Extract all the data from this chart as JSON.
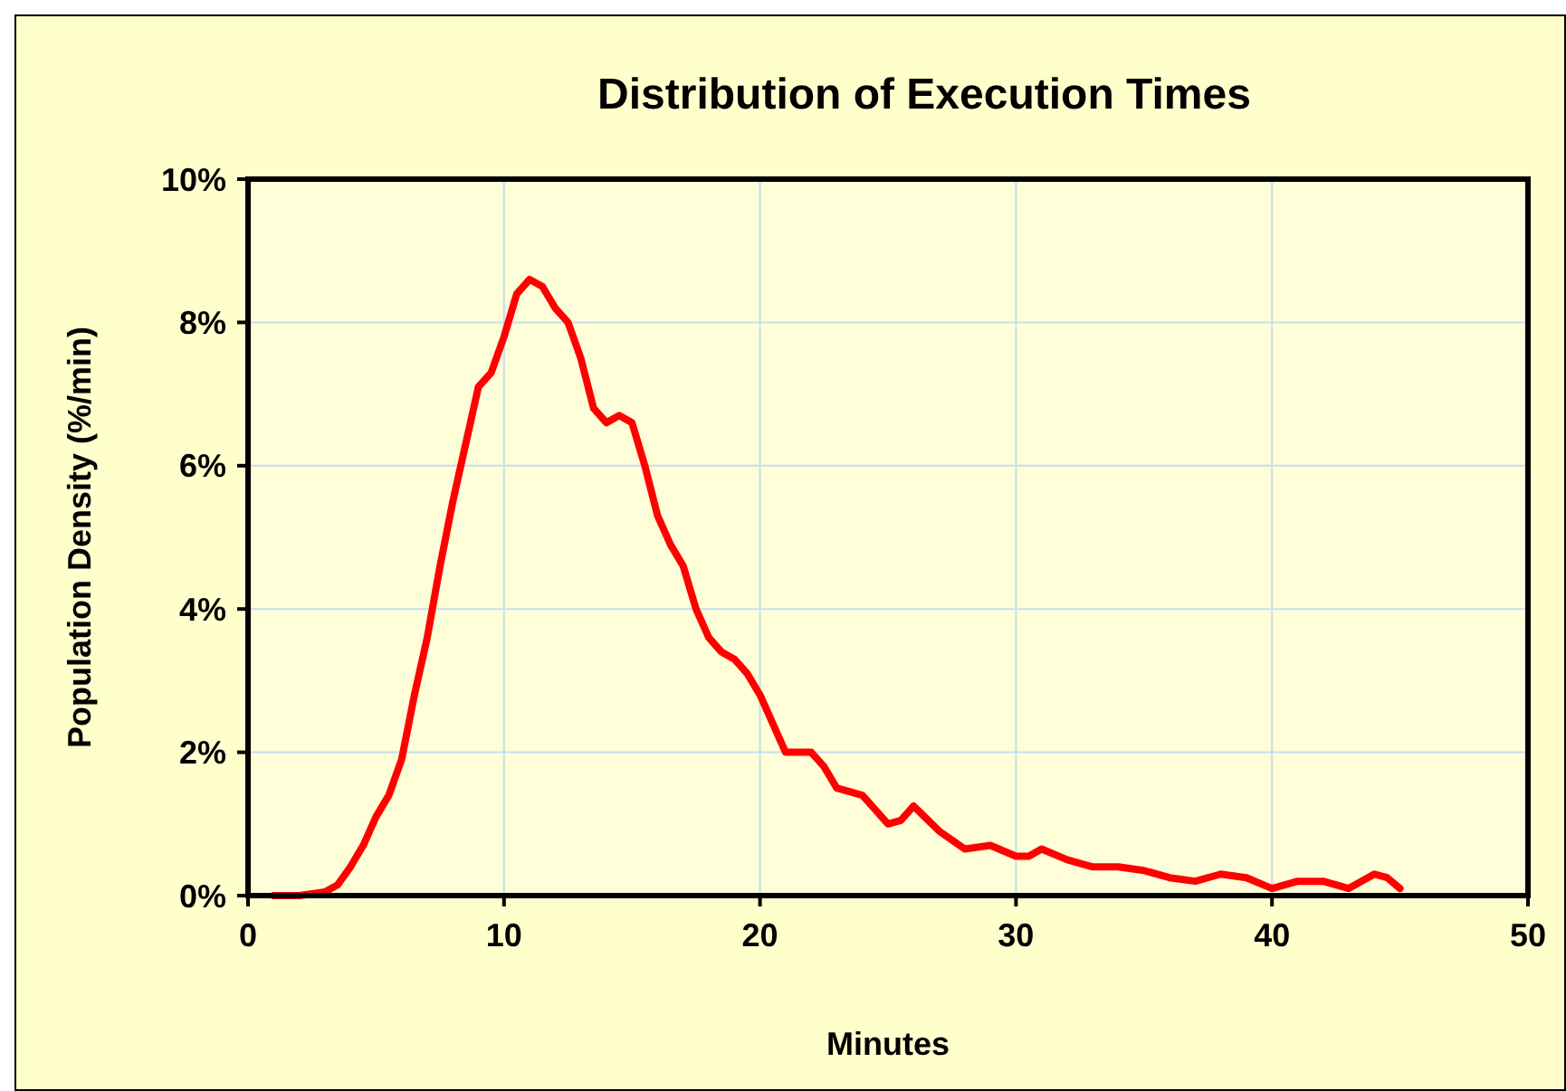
{
  "chart_data": {
    "type": "line",
    "title": "Distribution of Execution Times",
    "xlabel": "Minutes",
    "ylabel": "Population Density (%/min)",
    "x": [
      1,
      2,
      3,
      3.5,
      4,
      4.5,
      5,
      5.5,
      6,
      6.5,
      7,
      7.5,
      8,
      8.5,
      9,
      9.5,
      10,
      10.5,
      11,
      11.5,
      12,
      12.5,
      13,
      13.5,
      14,
      14.5,
      15,
      15.5,
      16,
      16.5,
      17,
      17.5,
      18,
      18.5,
      19,
      19.5,
      20,
      20.5,
      21,
      22,
      22.5,
      23,
      24,
      25,
      25.5,
      26,
      27,
      28,
      29,
      30,
      30.5,
      31,
      32,
      33,
      34,
      35,
      36,
      37,
      38,
      39,
      40,
      41,
      42,
      43,
      44,
      44.5,
      45
    ],
    "series": [
      {
        "color": "#ff0000",
        "values": [
          0,
          0,
          0.05,
          0.15,
          0.4,
          0.7,
          1.1,
          1.4,
          1.9,
          2.8,
          3.6,
          4.6,
          5.5,
          6.3,
          7.1,
          7.3,
          7.8,
          8.4,
          8.6,
          8.5,
          8.2,
          8.0,
          7.5,
          6.8,
          6.6,
          6.7,
          6.6,
          6.0,
          5.3,
          4.9,
          4.6,
          4.0,
          3.6,
          3.4,
          3.3,
          3.1,
          2.8,
          2.4,
          2.0,
          2.0,
          1.8,
          1.5,
          1.4,
          1.0,
          1.05,
          1.25,
          0.9,
          0.65,
          0.7,
          0.55,
          0.55,
          0.65,
          0.5,
          0.4,
          0.4,
          0.35,
          0.25,
          0.2,
          0.3,
          0.25,
          0.1,
          0.2,
          0.2,
          0.1,
          0.3,
          0.25,
          0.1
        ]
      }
    ],
    "xlim": [
      0,
      50
    ],
    "xticks": [
      0,
      10,
      20,
      30,
      40,
      50
    ],
    "ylim": [
      0,
      10
    ],
    "yticks": [
      {
        "value": 0,
        "label": "0%"
      },
      {
        "value": 2,
        "label": "2%"
      },
      {
        "value": 4,
        "label": "4%"
      },
      {
        "value": 6,
        "label": "6%"
      },
      {
        "value": 8,
        "label": "8%"
      },
      {
        "value": 10,
        "label": "10%"
      }
    ],
    "grid": true,
    "marker": "none",
    "line_style": "solid"
  }
}
